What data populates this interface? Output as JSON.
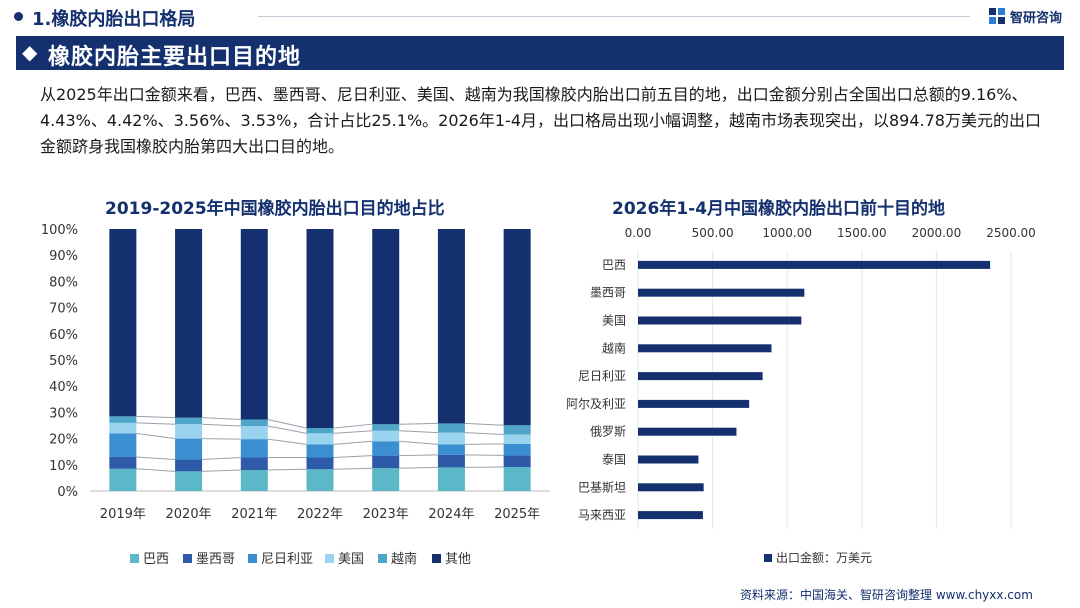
{
  "header": {
    "section_title": "1.橡胶内胎出口格局",
    "brand": "智研咨询",
    "logo_icon": "zhiyan-logo-icon",
    "bullet_icon": "circle-bullet-icon"
  },
  "banner": {
    "diamond_icon": "double-diamond-icon",
    "title": "橡胶内胎主要出口目的地"
  },
  "paragraph": "从2025年出口金额来看，巴西、墨西哥、尼日利亚、美国、越南为我国橡胶内胎出口前五目的地，出口金额分别占全国出口总额的9.16%、4.43%、4.42%、3.56%、3.53%，合计占比25.1%。2026年1-4月，出口格局出现小幅调整，越南市场表现突出，以894.78万美元的出口金额跻身我国橡胶内胎第四大出口目的地。",
  "chart_data": [
    {
      "type": "bar",
      "stacked": true,
      "title": "2019-2025年中国橡胶内胎出口目的地占比",
      "categories": [
        "2019年",
        "2020年",
        "2021年",
        "2022年",
        "2023年",
        "2024年",
        "2025年"
      ],
      "ylim": [
        0,
        100
      ],
      "y_ticks": [
        "0%",
        "10%",
        "20%",
        "30%",
        "40%",
        "50%",
        "60%",
        "70%",
        "80%",
        "90%",
        "100%"
      ],
      "legend_position": "bottom",
      "series": [
        {
          "name": "巴西",
          "color": "#5ab8c8",
          "values": [
            8.5,
            7.5,
            8.0,
            8.3,
            8.7,
            9.0,
            9.16
          ]
        },
        {
          "name": "墨西哥",
          "color": "#2e5aa8",
          "values": [
            4.5,
            4.5,
            4.8,
            4.5,
            4.8,
            4.8,
            4.43
          ]
        },
        {
          "name": "尼日利亚",
          "color": "#3b8fd0",
          "values": [
            9.0,
            8.0,
            7.0,
            5.0,
            5.5,
            4.0,
            4.42
          ]
        },
        {
          "name": "美国",
          "color": "#9ad3ee",
          "values": [
            4.0,
            5.5,
            5.0,
            4.2,
            4.0,
            4.5,
            3.56
          ]
        },
        {
          "name": "越南",
          "color": "#4fa5c8",
          "values": [
            2.5,
            2.5,
            2.5,
            2.0,
            2.5,
            3.5,
            3.53
          ]
        },
        {
          "name": "其他",
          "color": "#14306e",
          "values": [
            71.5,
            72.0,
            72.7,
            76.0,
            74.5,
            74.2,
            74.9
          ]
        }
      ]
    },
    {
      "type": "bar",
      "orientation": "horizontal",
      "title": "2026年1-4月中国橡胶内胎出口前十目的地",
      "categories": [
        "巴西",
        "墨西哥",
        "美国",
        "越南",
        "尼日利亚",
        "阿尔及利亚",
        "俄罗斯",
        "泰国",
        "巴基斯坦",
        "马来西亚"
      ],
      "xlim": [
        0,
        2500
      ],
      "x_ticks": [
        "0.00",
        "500.00",
        "1000.00",
        "1500.00",
        "2000.00",
        "2500.00"
      ],
      "legend": "出口金额：万美元",
      "color": "#14306e",
      "values": [
        2360,
        1115,
        1095,
        894.78,
        835,
        745,
        660,
        405,
        440,
        435
      ]
    }
  ],
  "footer": {
    "source": "资料来源：中国海关、智研咨询整理    www.chyxx.com"
  }
}
